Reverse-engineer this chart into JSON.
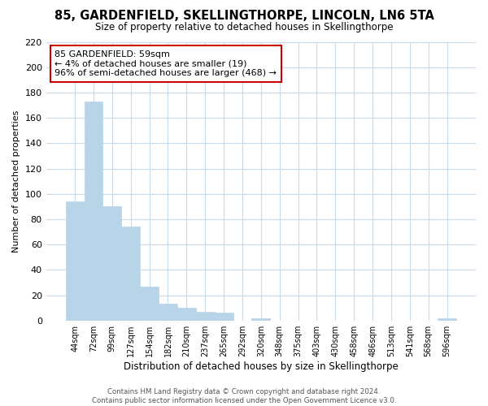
{
  "title": "85, GARDENFIELD, SKELLINGTHORPE, LINCOLN, LN6 5TA",
  "subtitle": "Size of property relative to detached houses in Skellingthorpe",
  "xlabel": "Distribution of detached houses by size in Skellingthorpe",
  "ylabel": "Number of detached properties",
  "categories": [
    "44sqm",
    "72sqm",
    "99sqm",
    "127sqm",
    "154sqm",
    "182sqm",
    "210sqm",
    "237sqm",
    "265sqm",
    "292sqm",
    "320sqm",
    "348sqm",
    "375sqm",
    "403sqm",
    "430sqm",
    "458sqm",
    "486sqm",
    "513sqm",
    "541sqm",
    "568sqm",
    "596sqm"
  ],
  "values": [
    94,
    173,
    90,
    74,
    27,
    13,
    10,
    7,
    6,
    0,
    2,
    0,
    0,
    0,
    0,
    0,
    0,
    0,
    0,
    0,
    2
  ],
  "bar_color": "#b8d4e8",
  "annotation_text": "85 GARDENFIELD: 59sqm\n← 4% of detached houses are smaller (19)\n96% of semi-detached houses are larger (468) →",
  "annotation_box_color": "#ffffff",
  "annotation_box_edge_color": "#cc0000",
  "ylim": [
    0,
    220
  ],
  "yticks": [
    0,
    20,
    40,
    60,
    80,
    100,
    120,
    140,
    160,
    180,
    200,
    220
  ],
  "background_color": "#ffffff",
  "grid_color": "#c8daea",
  "footer_line1": "Contains HM Land Registry data © Crown copyright and database right 2024.",
  "footer_line2": "Contains public sector information licensed under the Open Government Licence v3.0."
}
